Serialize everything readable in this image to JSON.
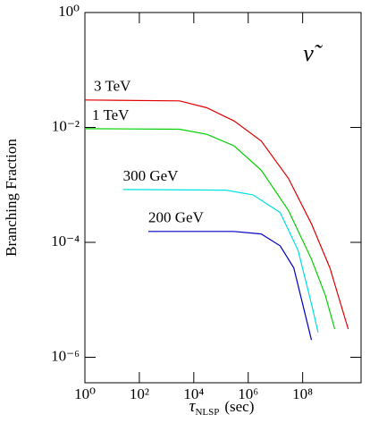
{
  "chart_data": {
    "type": "line",
    "y_label": "Branching Fraction",
    "x_label": {
      "symbol": "τ",
      "subscript": "NLSP",
      "unit": "(sec)"
    },
    "annotation": "ν̃",
    "log_x": true,
    "log_y": true,
    "xlim": [
      1,
      14000000000
    ],
    "ylim": [
      3.6e-07,
      1
    ],
    "xticks": [
      {
        "value": 1,
        "label": "10⁰"
      },
      {
        "value": 100,
        "label": "10²"
      },
      {
        "value": 10000,
        "label": "10⁴"
      },
      {
        "value": 1000000,
        "label": "10⁶"
      },
      {
        "value": 100000000,
        "label": "10⁸"
      }
    ],
    "yticks": [
      {
        "value": 1,
        "label": "10⁰"
      },
      {
        "value": 0.01,
        "label": "10⁻²"
      },
      {
        "value": 0.0001,
        "label": "10⁻⁴"
      },
      {
        "value": 1e-06,
        "label": "10⁻⁶"
      }
    ],
    "series": [
      {
        "name": "3 TeV",
        "color": "#e00000",
        "x": [
          1,
          3000,
          30000,
          300000,
          3000000,
          30000000,
          210000000,
          1000000000,
          4700000000
        ],
        "values": [
          0.03,
          0.029,
          0.022,
          0.013,
          0.0058,
          0.0013,
          0.00021,
          3.6e-05,
          3.1e-06
        ]
      },
      {
        "name": "1 TeV",
        "color": "#00d000",
        "x": [
          1,
          3000,
          30000,
          300000,
          3000000,
          30000000,
          210000000,
          680000000,
          1500000000
        ],
        "values": [
          0.0095,
          0.0093,
          0.0076,
          0.0048,
          0.0018,
          0.00036,
          5.1e-05,
          1.2e-05,
          3.1e-06
        ]
      },
      {
        "name": "300 GeV",
        "color": "#00e0e0",
        "x": [
          25,
          150000,
          1500000,
          15000000,
          68000000,
          210000000,
          370000000
        ],
        "values": [
          0.00083,
          0.00081,
          0.00067,
          0.00033,
          7.3e-05,
          8.5e-06,
          2.7e-06
        ]
      },
      {
        "name": "200 GeV",
        "color": "#0000c0",
        "x": [
          215,
          300000,
          3000000,
          15000000,
          47000000,
          100000000,
          210000000
        ],
        "values": [
          0.000155,
          0.000155,
          0.00014,
          8.7e-05,
          3.6e-05,
          8.5e-06,
          2e-06
        ]
      }
    ]
  }
}
